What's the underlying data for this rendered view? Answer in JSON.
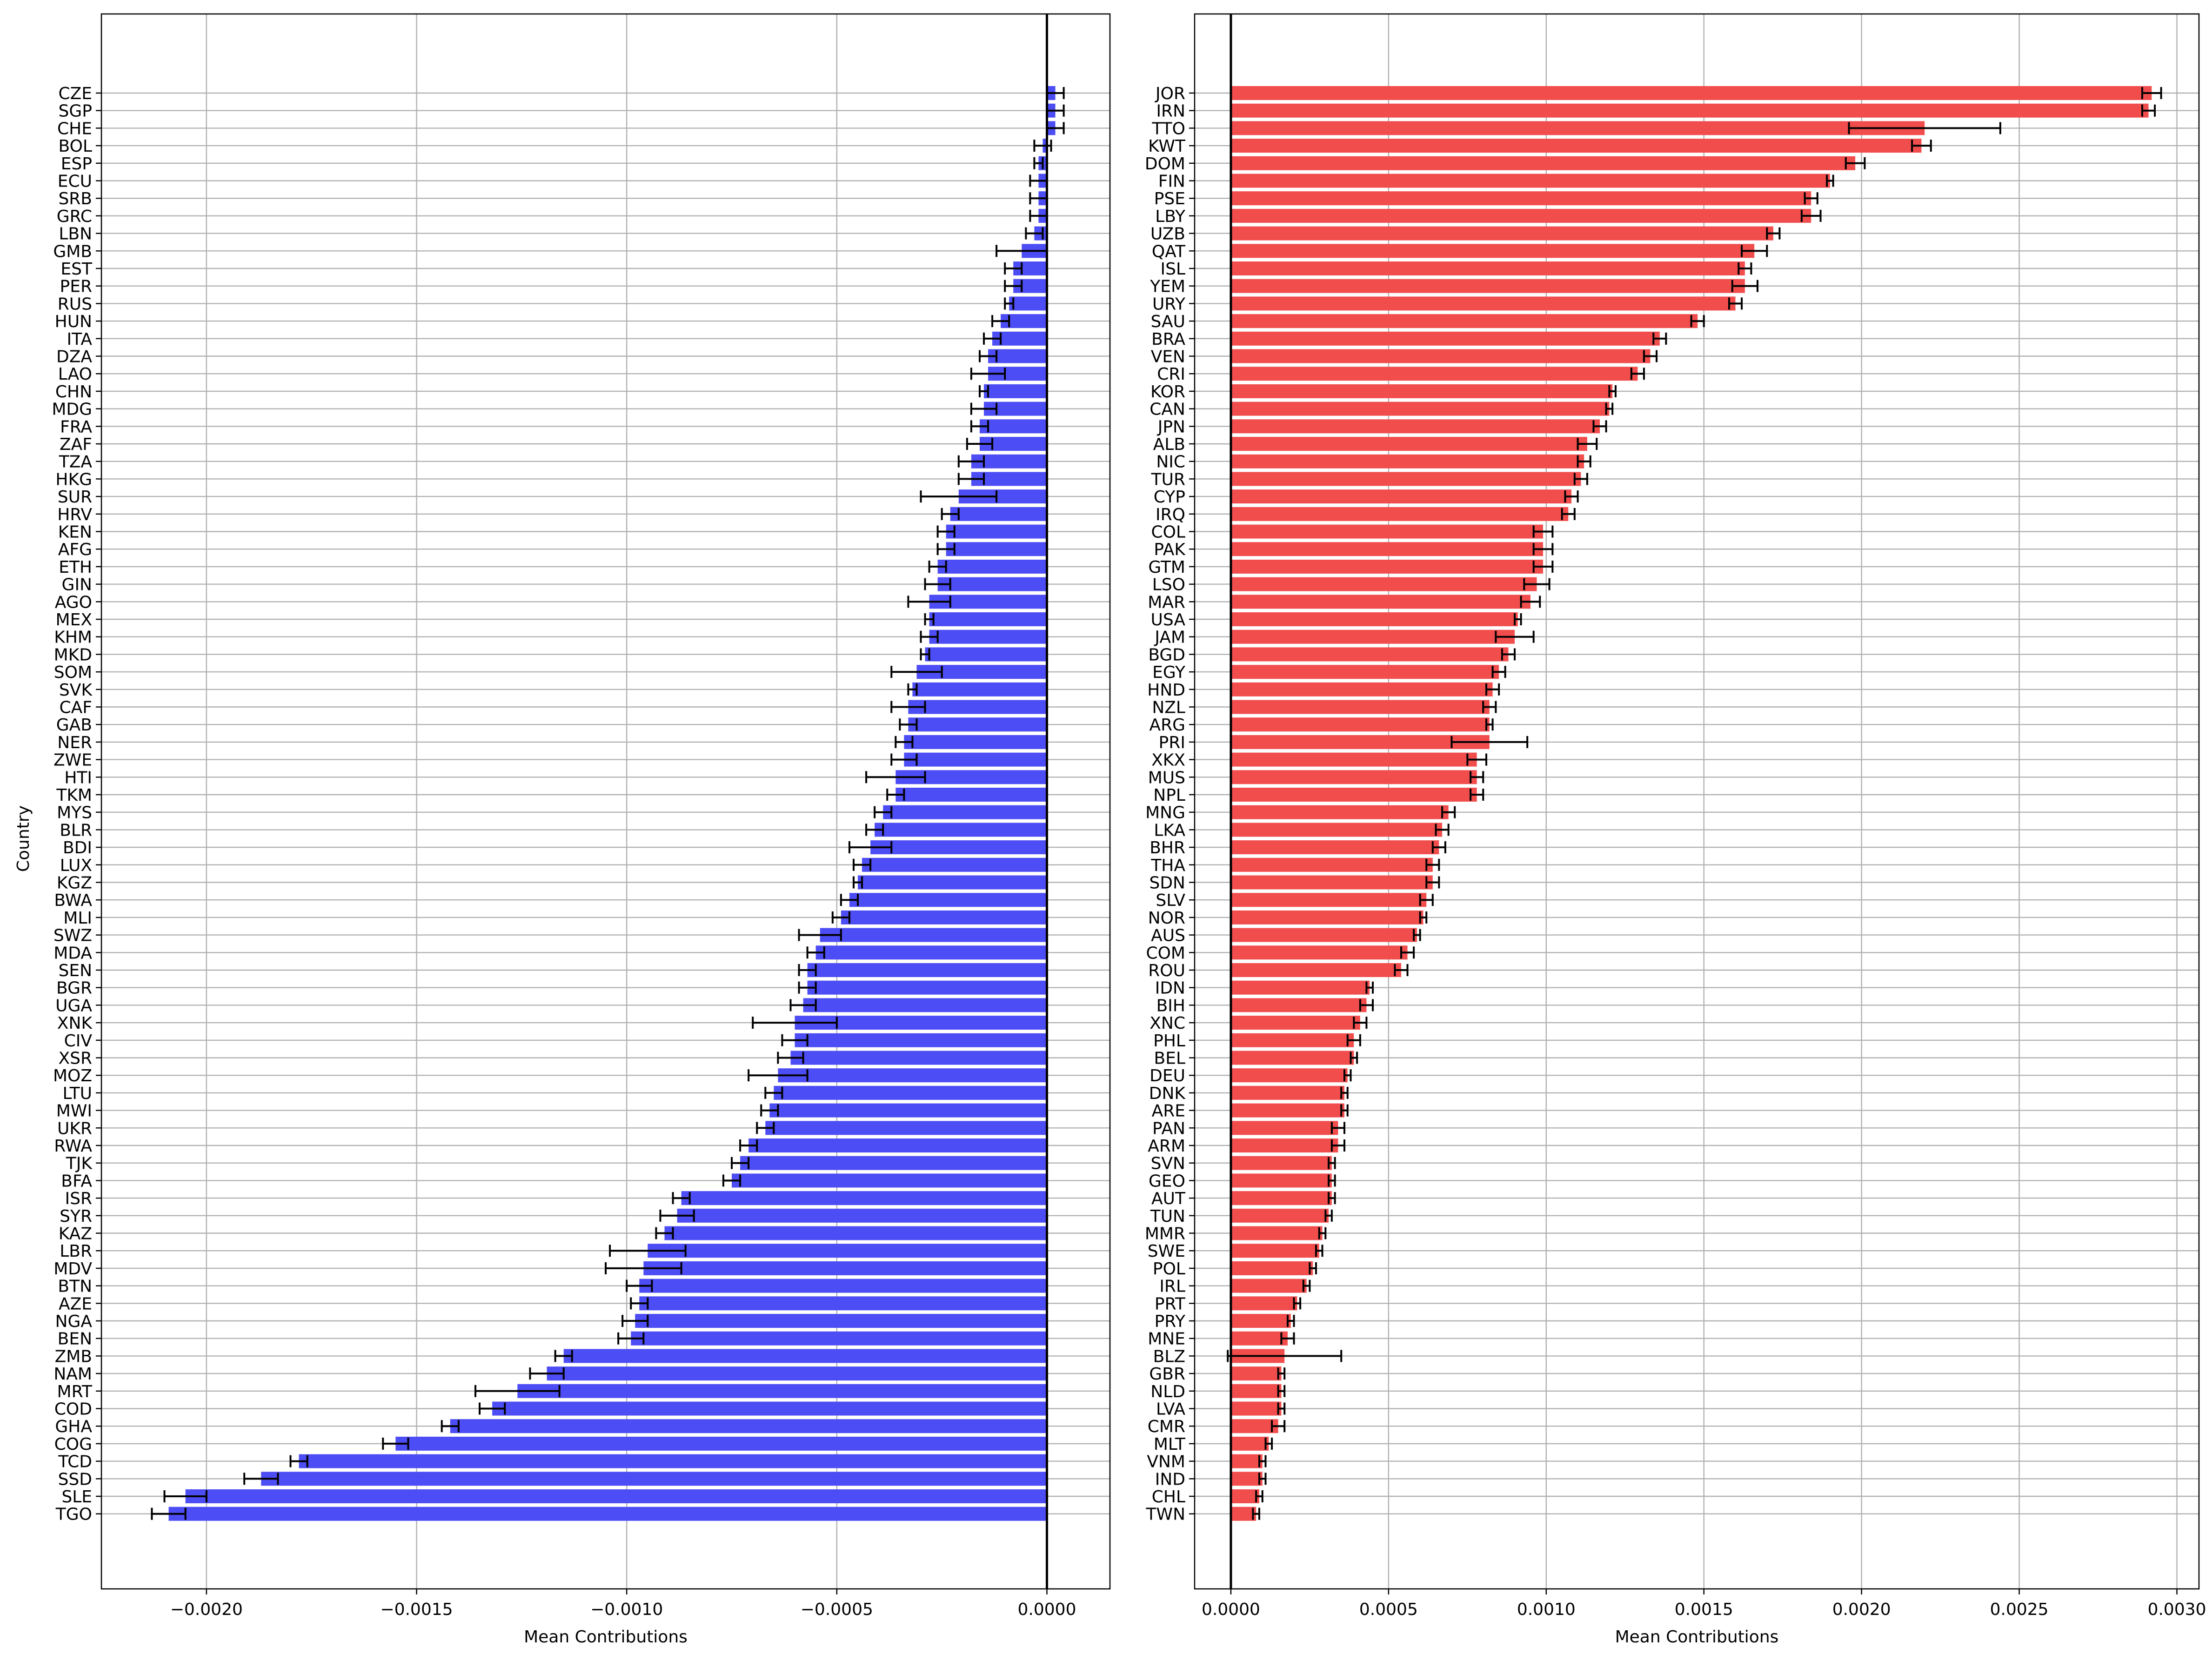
{
  "chart_data": [
    {
      "type": "bar",
      "orientation": "horizontal",
      "xlabel": "Mean Contributions",
      "ylabel": "Country",
      "xlim": [
        -0.00225,
        0.00015
      ],
      "xticks": [
        -0.002,
        -0.0015,
        -0.001,
        -0.0005,
        0.0
      ],
      "xtick_labels": [
        "−0.0020",
        "−0.0015",
        "−0.0010",
        "−0.0005",
        "0.0000"
      ],
      "grid": true,
      "categories": [
        "CZE",
        "SGP",
        "CHE",
        "BOL",
        "ESP",
        "ECU",
        "SRB",
        "GRC",
        "LBN",
        "GMB",
        "EST",
        "PER",
        "RUS",
        "HUN",
        "ITA",
        "DZA",
        "LAO",
        "CHN",
        "MDG",
        "FRA",
        "ZAF",
        "TZA",
        "HKG",
        "SUR",
        "HRV",
        "KEN",
        "AFG",
        "ETH",
        "GIN",
        "AGO",
        "MEX",
        "KHM",
        "MKD",
        "SOM",
        "SVK",
        "CAF",
        "GAB",
        "NER",
        "ZWE",
        "HTI",
        "TKM",
        "MYS",
        "BLR",
        "BDI",
        "LUX",
        "KGZ",
        "BWA",
        "MLI",
        "SWZ",
        "MDA",
        "SEN",
        "BGR",
        "UGA",
        "XNK",
        "CIV",
        "XSR",
        "MOZ",
        "LTU",
        "MWI",
        "UKR",
        "RWA",
        "TJK",
        "BFA",
        "ISR",
        "SYR",
        "KAZ",
        "LBR",
        "MDV",
        "BTN",
        "AZE",
        "NGA",
        "BEN",
        "ZMB",
        "NAM",
        "MRT",
        "COD",
        "GHA",
        "COG",
        "TCD",
        "SSD",
        "SLE",
        "TGO"
      ],
      "values": [
        2e-05,
        2e-05,
        2e-05,
        -1e-05,
        -2e-05,
        -2e-05,
        -2e-05,
        -2e-05,
        -3e-05,
        -6e-05,
        -8e-05,
        -8e-05,
        -9e-05,
        -0.00011,
        -0.00013,
        -0.00014,
        -0.00014,
        -0.00015,
        -0.00015,
        -0.00016,
        -0.00016,
        -0.00018,
        -0.00018,
        -0.00021,
        -0.00023,
        -0.00024,
        -0.00024,
        -0.00026,
        -0.00026,
        -0.00028,
        -0.00028,
        -0.00028,
        -0.00029,
        -0.00031,
        -0.00032,
        -0.00033,
        -0.00033,
        -0.00034,
        -0.00034,
        -0.00036,
        -0.00036,
        -0.00039,
        -0.00041,
        -0.00042,
        -0.00044,
        -0.00045,
        -0.00047,
        -0.00049,
        -0.00054,
        -0.00055,
        -0.00057,
        -0.00057,
        -0.00058,
        -0.0006,
        -0.0006,
        -0.00061,
        -0.00064,
        -0.00065,
        -0.00066,
        -0.00067,
        -0.00071,
        -0.00073,
        -0.00075,
        -0.00087,
        -0.00088,
        -0.00091,
        -0.00095,
        -0.00096,
        -0.00097,
        -0.00097,
        -0.00098,
        -0.00099,
        -0.00115,
        -0.00119,
        -0.00126,
        -0.00132,
        -0.00142,
        -0.00155,
        -0.00178,
        -0.00187,
        -0.00205,
        -0.00209
      ],
      "errors": [
        2e-05,
        2e-05,
        2e-05,
        2e-05,
        1e-05,
        2e-05,
        2e-05,
        2e-05,
        2e-05,
        6e-05,
        2e-05,
        2e-05,
        1e-05,
        2e-05,
        2e-05,
        2e-05,
        4e-05,
        1e-05,
        3e-05,
        2e-05,
        3e-05,
        3e-05,
        3e-05,
        9e-05,
        2e-05,
        2e-05,
        2e-05,
        2e-05,
        3e-05,
        5e-05,
        1e-05,
        2e-05,
        1e-05,
        6e-05,
        1e-05,
        4e-05,
        2e-05,
        2e-05,
        3e-05,
        7e-05,
        2e-05,
        2e-05,
        2e-05,
        5e-05,
        2e-05,
        1e-05,
        2e-05,
        2e-05,
        5e-05,
        2e-05,
        2e-05,
        2e-05,
        3e-05,
        0.0001,
        3e-05,
        3e-05,
        7e-05,
        2e-05,
        2e-05,
        2e-05,
        2e-05,
        2e-05,
        2e-05,
        2e-05,
        4e-05,
        2e-05,
        9e-05,
        9e-05,
        3e-05,
        2e-05,
        3e-05,
        3e-05,
        2e-05,
        4e-05,
        0.0001,
        3e-05,
        2e-05,
        3e-05,
        2e-05,
        4e-05,
        5e-05,
        4e-05
      ],
      "color": "#4d4df5"
    },
    {
      "type": "bar",
      "orientation": "horizontal",
      "xlabel": "Mean Contributions",
      "ylabel": "",
      "xlim": [
        -0.000115,
        0.00307
      ],
      "xticks": [
        0.0,
        0.0005,
        0.001,
        0.0015,
        0.002,
        0.0025,
        0.003
      ],
      "xtick_labels": [
        "0.0000",
        "0.0005",
        "0.0010",
        "0.0015",
        "0.0020",
        "0.0025",
        "0.0030"
      ],
      "grid": true,
      "categories": [
        "JOR",
        "IRN",
        "TTO",
        "KWT",
        "DOM",
        "FIN",
        "PSE",
        "LBY",
        "UZB",
        "QAT",
        "ISL",
        "YEM",
        "URY",
        "SAU",
        "BRA",
        "VEN",
        "CRI",
        "KOR",
        "CAN",
        "JPN",
        "ALB",
        "NIC",
        "TUR",
        "CYP",
        "IRQ",
        "COL",
        "PAK",
        "GTM",
        "LSO",
        "MAR",
        "USA",
        "JAM",
        "BGD",
        "EGY",
        "HND",
        "NZL",
        "ARG",
        "PRI",
        "XKX",
        "MUS",
        "NPL",
        "MNG",
        "LKA",
        "BHR",
        "THA",
        "SDN",
        "SLV",
        "NOR",
        "AUS",
        "COM",
        "ROU",
        "IDN",
        "BIH",
        "XNC",
        "PHL",
        "BEL",
        "DEU",
        "DNK",
        "ARE",
        "PAN",
        "ARM",
        "SVN",
        "GEO",
        "AUT",
        "TUN",
        "MMR",
        "SWE",
        "POL",
        "IRL",
        "PRT",
        "PRY",
        "MNE",
        "BLZ",
        "GBR",
        "NLD",
        "LVA",
        "CMR",
        "MLT",
        "VNM",
        "IND",
        "CHL",
        "TWN"
      ],
      "values": [
        0.00292,
        0.00291,
        0.0022,
        0.00219,
        0.00198,
        0.0019,
        0.00184,
        0.00184,
        0.00172,
        0.00166,
        0.00163,
        0.00163,
        0.0016,
        0.00148,
        0.00136,
        0.00133,
        0.00129,
        0.00121,
        0.0012,
        0.00117,
        0.00113,
        0.00112,
        0.00111,
        0.00108,
        0.00107,
        0.00099,
        0.00099,
        0.00099,
        0.00097,
        0.00095,
        0.00091,
        0.0009,
        0.00088,
        0.00085,
        0.00083,
        0.00082,
        0.00082,
        0.00082,
        0.00078,
        0.00078,
        0.00078,
        0.00069,
        0.00067,
        0.00066,
        0.00064,
        0.00064,
        0.00062,
        0.00061,
        0.00059,
        0.00056,
        0.00054,
        0.00044,
        0.00043,
        0.00041,
        0.00039,
        0.00039,
        0.00037,
        0.00036,
        0.00036,
        0.00034,
        0.00034,
        0.00032,
        0.00032,
        0.00032,
        0.00031,
        0.00029,
        0.00028,
        0.00026,
        0.00024,
        0.00021,
        0.00019,
        0.00018,
        0.00017,
        0.00016,
        0.00016,
        0.00016,
        0.00015,
        0.00012,
        0.0001,
        0.0001,
        9e-05,
        8e-05
      ],
      "errors": [
        3e-05,
        2e-05,
        0.00024,
        3e-05,
        3e-05,
        1e-05,
        2e-05,
        3e-05,
        2e-05,
        4e-05,
        2e-05,
        4e-05,
        2e-05,
        2e-05,
        2e-05,
        2e-05,
        2e-05,
        1e-05,
        1e-05,
        2e-05,
        3e-05,
        2e-05,
        2e-05,
        2e-05,
        2e-05,
        3e-05,
        3e-05,
        3e-05,
        4e-05,
        3e-05,
        1e-05,
        6e-05,
        2e-05,
        2e-05,
        2e-05,
        2e-05,
        1e-05,
        0.00012,
        3e-05,
        2e-05,
        2e-05,
        2e-05,
        2e-05,
        2e-05,
        2e-05,
        2e-05,
        2e-05,
        1e-05,
        1e-05,
        2e-05,
        2e-05,
        1e-05,
        2e-05,
        2e-05,
        2e-05,
        1e-05,
        1e-05,
        1e-05,
        1e-05,
        2e-05,
        2e-05,
        1e-05,
        1e-05,
        1e-05,
        1e-05,
        1e-05,
        1e-05,
        1e-05,
        1e-05,
        1e-05,
        1e-05,
        2e-05,
        0.00018,
        1e-05,
        1e-05,
        1e-05,
        2e-05,
        1e-05,
        1e-05,
        1e-05,
        1e-05,
        1e-05
      ],
      "color": "#f24d4d"
    }
  ]
}
